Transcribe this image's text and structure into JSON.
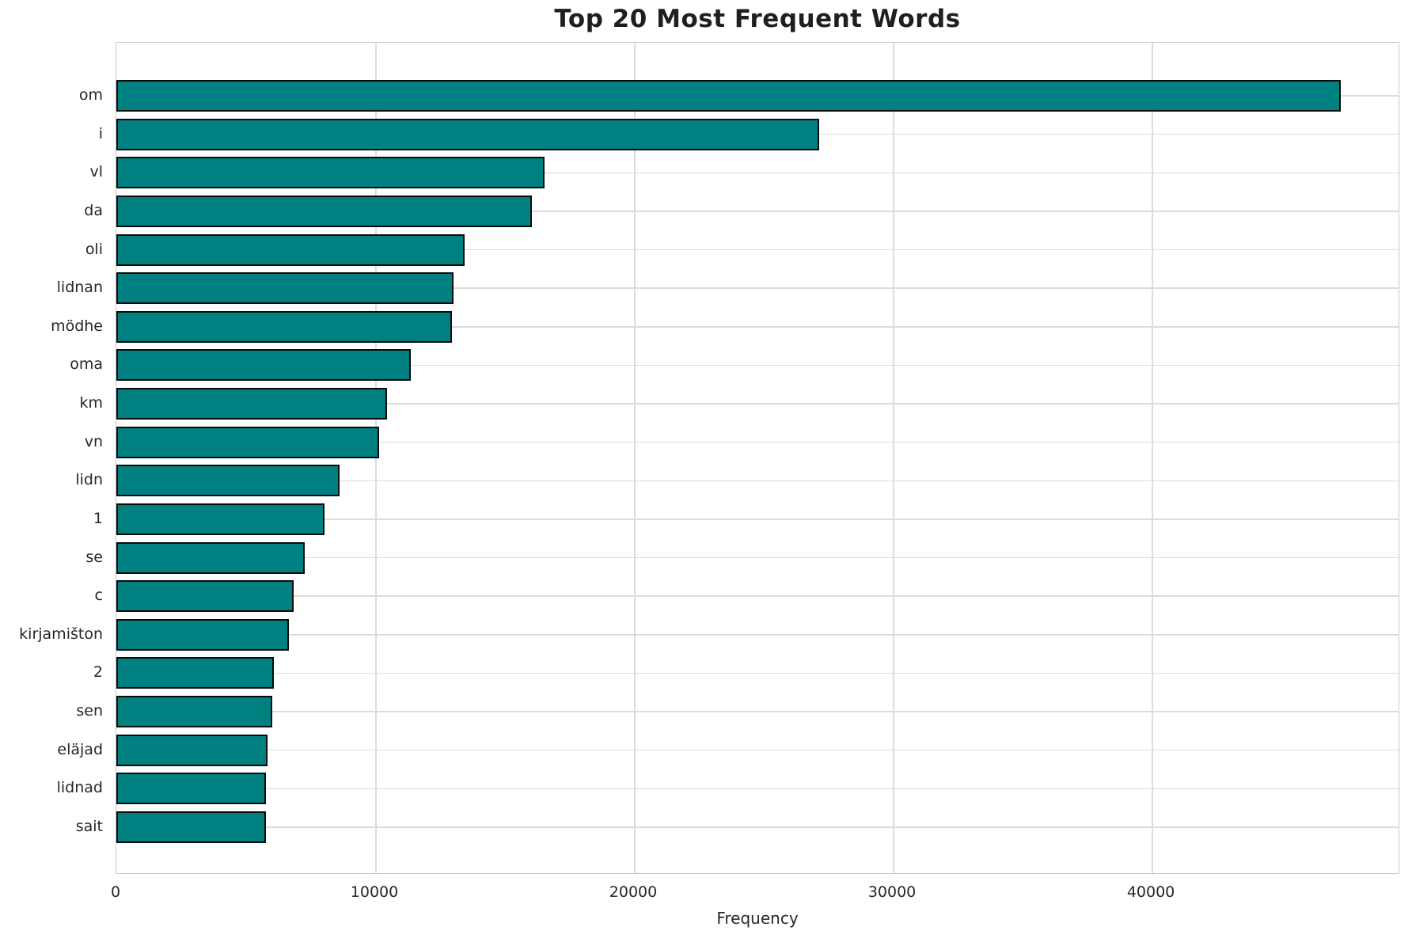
{
  "chart_data": {
    "type": "bar",
    "orientation": "horizontal",
    "title": "Top 20 Most Frequent Words",
    "xlabel": "Frequency",
    "ylabel": "",
    "categories": [
      "om",
      "i",
      "vl",
      "da",
      "oli",
      "lidnan",
      "mödhe",
      "oma",
      "km",
      "vn",
      "lidn",
      "1",
      "se",
      "c",
      "kirjamišton",
      "2",
      "sen",
      "eläjad",
      "lidnad",
      "sait"
    ],
    "values": [
      47300,
      27150,
      16550,
      16040,
      13440,
      13030,
      12980,
      11390,
      10470,
      10150,
      8630,
      8030,
      7280,
      6840,
      6670,
      6080,
      6030,
      5850,
      5790,
      5780
    ],
    "xticks": [
      0,
      10000,
      20000,
      30000,
      40000
    ],
    "xtick_labels": [
      "0",
      "10000",
      "20000",
      "30000",
      "40000"
    ],
    "xlim": [
      0,
      49600
    ],
    "grid": "on",
    "legend": "none",
    "colors": {
      "bar_fill": "#008080",
      "bar_edge": "#0a0a0a",
      "grid": "#dcdcdc",
      "spine": "#c9c9c9",
      "text": "#262626",
      "title": "#1f1f1f",
      "background": "#ffffff"
    }
  }
}
